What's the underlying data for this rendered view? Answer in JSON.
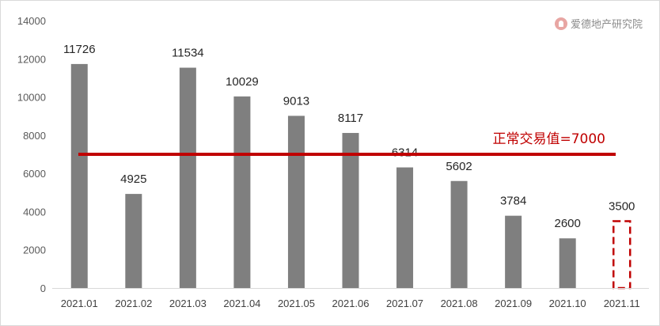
{
  "watermark": {
    "text": "爱德地产研究院",
    "icon": "institute-logo-icon"
  },
  "chart_data": {
    "type": "bar",
    "title": "",
    "xlabel": "",
    "ylabel": "",
    "ylim": [
      0,
      14000
    ],
    "yticks": [
      "0",
      "2000",
      "4000",
      "6000",
      "8000",
      "10000",
      "12000",
      "14000"
    ],
    "grid": false,
    "legend": "none",
    "categories": [
      "2021.01",
      "2021.02",
      "2021.03",
      "2021.04",
      "2021.05",
      "2021.06",
      "2021.07",
      "2021.08",
      "2021.09",
      "2021.10",
      "2021.11"
    ],
    "values": [
      11726,
      4925,
      11534,
      10029,
      9013,
      8117,
      6314,
      5602,
      3784,
      2600,
      3500
    ],
    "value_labels": [
      "11726",
      "4925",
      "11534",
      "10029",
      "9013",
      "8117",
      "6314",
      "5602",
      "3784",
      "2600",
      "3500"
    ],
    "highlighted_category": "2021.11",
    "reference_line": {
      "value": 7000,
      "label": "正常交易值=7000"
    },
    "colors": {
      "bar": "#7f7f7f",
      "reference_line": "#c00000",
      "highlight_outline": "#c00000",
      "axis": "#d9d9d9"
    }
  }
}
